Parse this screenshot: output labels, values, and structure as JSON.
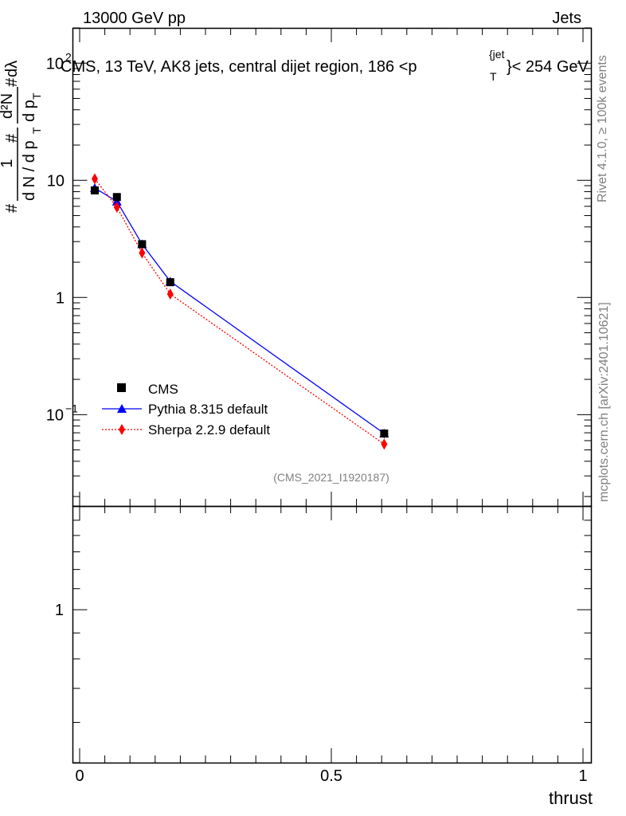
{
  "header": {
    "energy_label": "13000 GeV pp",
    "category_label": "Jets"
  },
  "side_labels": {
    "rivet": "Rivet 4.1.0, ≥ 100k events",
    "mcplots": "mcplots.cern.ch [arXiv:2401.10621]"
  },
  "chart_data": {
    "type": "line",
    "title": "CMS, 13 TeV, AK8 jets, central dijet region, 186 < p_T^{jet} < 254 GeV",
    "title_parts": {
      "main": "CMS, 13 TeV, AK8 jets, central dijet region, 186 <p",
      "superscript": "{jet",
      "subscript": "T",
      "tail": "}< 254 GeV"
    },
    "analysis_tag": "(CMS_2021_I1920187)",
    "xlabel": "thrust",
    "ylabel": "1/dN/dp_T # d²N/dp_T # dλ",
    "ylabel_parts": {
      "hash_left": "#",
      "numer_one": "1",
      "denom_left": "d N / d p",
      "sub_T": "T",
      "hash_mid": "#",
      "numer_right": "d²N",
      "denom_right": "d p",
      "sub_T2": "T",
      "hash_right": "#",
      "dlambda": "dλ"
    },
    "xlim": [
      0,
      1
    ],
    "ylim": [
      0.0166,
      200
    ],
    "yscale": "log",
    "x_ticks": [
      {
        "value": 0,
        "label": "0"
      },
      {
        "value": 0.5,
        "label": "0.5"
      },
      {
        "value": 1,
        "label": "1"
      }
    ],
    "y_ticks": [
      {
        "value": 0.1,
        "label": "10",
        "sup": "−1"
      },
      {
        "value": 1,
        "label": "1",
        "sup": ""
      },
      {
        "value": 10,
        "label": "10",
        "sup": ""
      },
      {
        "value": 100,
        "label": "10",
        "sup": "2"
      }
    ],
    "ratio_panel": {
      "ylim": [
        0.5,
        1.6
      ],
      "y_ticks": [
        {
          "value": 1,
          "label": "1"
        }
      ]
    },
    "series": [
      {
        "name": "CMS",
        "color": "#000000",
        "marker": "square",
        "line": "none",
        "x": [
          0.03,
          0.074,
          0.124,
          0.18,
          0.605
        ],
        "y": [
          8.2,
          7.2,
          2.85,
          1.35,
          0.069
        ],
        "yerr": [
          0.3,
          0.25,
          0.12,
          0.06,
          0.006
        ]
      },
      {
        "name": "Pythia 8.315 default",
        "color": "#0000ff",
        "marker": "triangle",
        "line": "solid",
        "x": [
          0.03,
          0.074,
          0.124,
          0.18,
          0.605
        ],
        "y": [
          8.6,
          6.6,
          2.85,
          1.37,
          0.069
        ]
      },
      {
        "name": "Sherpa 2.2.9 default",
        "color": "#ff0000",
        "marker": "diamond",
        "line": "dotted",
        "x": [
          0.03,
          0.074,
          0.124,
          0.18,
          0.605
        ],
        "y": [
          10.3,
          5.9,
          2.4,
          1.07,
          0.056
        ]
      }
    ]
  }
}
